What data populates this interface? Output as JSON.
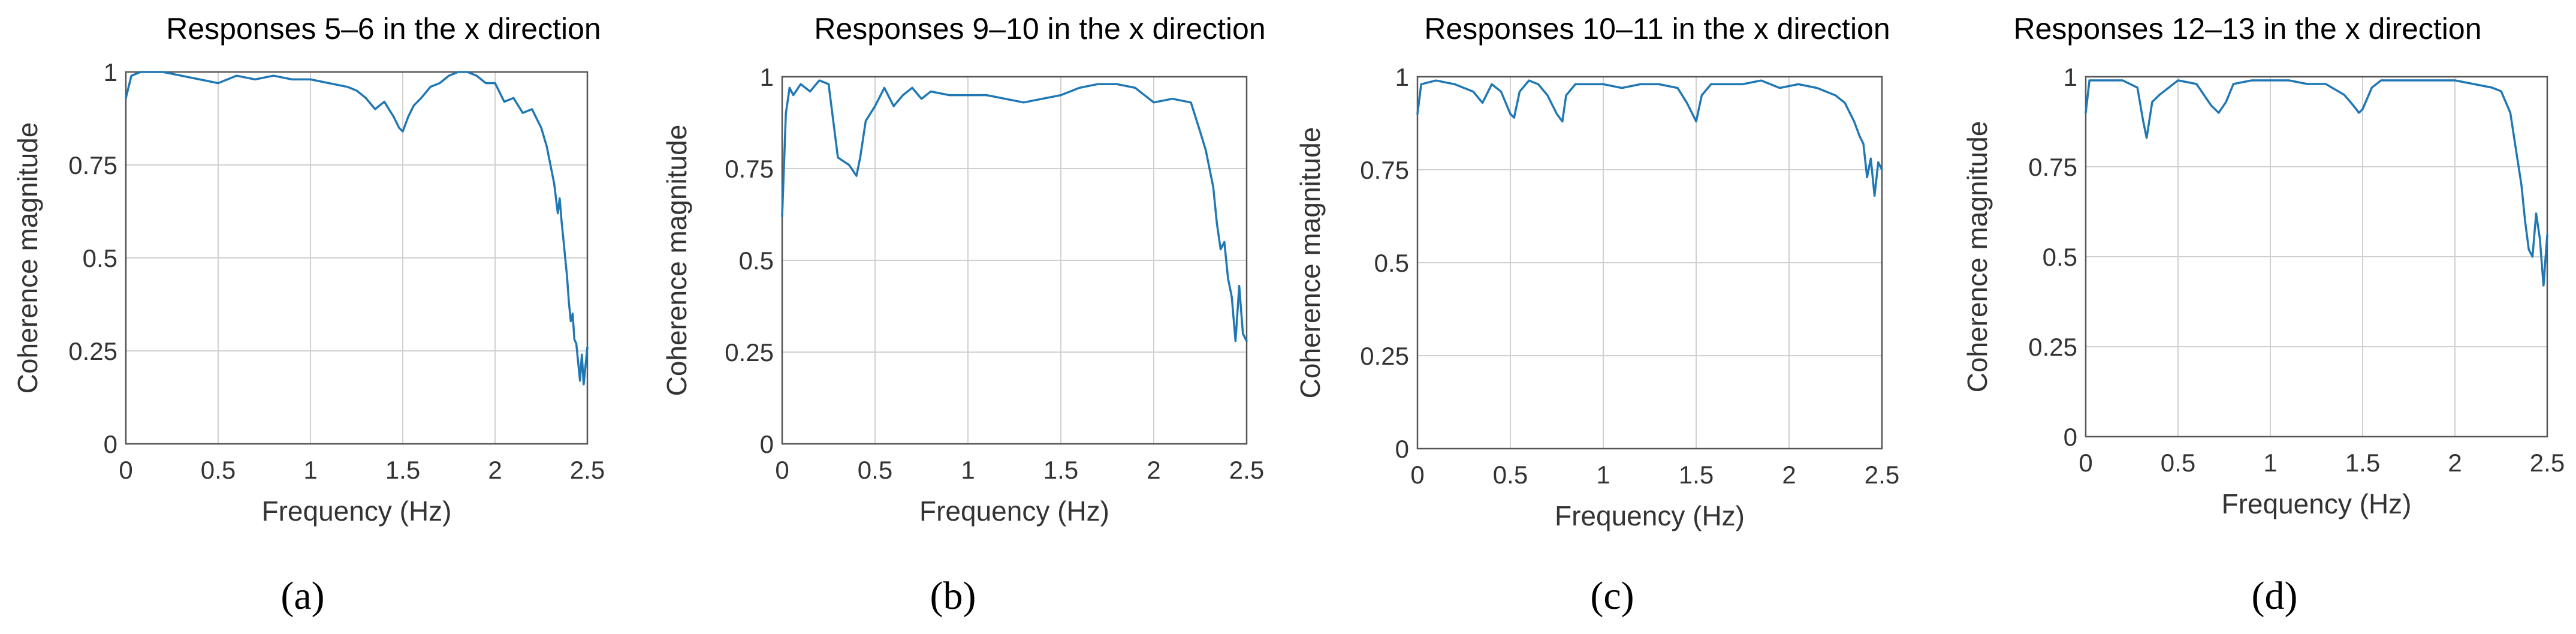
{
  "figure": {
    "panel_labels": [
      "(a)",
      "(b)",
      "(c)",
      "(d)"
    ]
  },
  "style": {
    "line_color": "#1f77b4",
    "grid_color": "#d0d0d0",
    "axis_color": "#555555"
  },
  "chart_data": [
    {
      "type": "line",
      "title": "Responses 5–6 in the x direction",
      "xlabel": "Frequency (Hz)",
      "ylabel": "Coherence magnitude",
      "xlim": [
        0,
        2.5
      ],
      "ylim": [
        0,
        1
      ],
      "xticks": [
        0,
        0.5,
        1,
        1.5,
        2,
        2.5
      ],
      "xtick_labels": [
        "0",
        "0.5",
        "1",
        "1.5",
        "2",
        "2.5"
      ],
      "yticks": [
        0,
        0.25,
        0.5,
        0.75,
        1
      ],
      "ytick_labels": [
        "0",
        "0.25",
        "0.5",
        "0.75",
        "1"
      ],
      "grid": true,
      "series": [
        {
          "name": "coherence",
          "x": [
            0,
            0.03,
            0.08,
            0.2,
            0.3,
            0.4,
            0.5,
            0.6,
            0.7,
            0.8,
            0.9,
            1.0,
            1.1,
            1.2,
            1.25,
            1.3,
            1.35,
            1.4,
            1.45,
            1.48,
            1.5,
            1.53,
            1.56,
            1.6,
            1.65,
            1.7,
            1.75,
            1.8,
            1.85,
            1.9,
            1.95,
            2.0,
            2.05,
            2.1,
            2.15,
            2.2,
            2.25,
            2.28,
            2.3,
            2.32,
            2.34,
            2.35,
            2.36,
            2.37,
            2.38,
            2.39,
            2.4,
            2.41,
            2.42,
            2.43,
            2.44,
            2.45,
            2.46,
            2.47,
            2.48,
            2.5
          ],
          "y": [
            0.93,
            0.99,
            1.0,
            1.0,
            0.99,
            0.98,
            0.97,
            0.99,
            0.98,
            0.99,
            0.98,
            0.98,
            0.97,
            0.96,
            0.95,
            0.93,
            0.9,
            0.92,
            0.88,
            0.85,
            0.84,
            0.88,
            0.91,
            0.93,
            0.96,
            0.97,
            0.99,
            1.0,
            1.0,
            0.99,
            0.97,
            0.97,
            0.92,
            0.93,
            0.89,
            0.9,
            0.85,
            0.8,
            0.75,
            0.7,
            0.62,
            0.66,
            0.6,
            0.55,
            0.5,
            0.45,
            0.38,
            0.33,
            0.35,
            0.28,
            0.27,
            0.22,
            0.17,
            0.24,
            0.16,
            0.26
          ]
        }
      ]
    },
    {
      "type": "line",
      "title": "Responses 9–10 in the x direction",
      "xlabel": "Frequency (Hz)",
      "ylabel": "Coherence magnitude",
      "xlim": [
        0,
        2.5
      ],
      "ylim": [
        0,
        1
      ],
      "xticks": [
        0,
        0.5,
        1,
        1.5,
        2,
        2.5
      ],
      "xtick_labels": [
        "0",
        "0.5",
        "1",
        "1.5",
        "2",
        "2.5"
      ],
      "yticks": [
        0,
        0.25,
        0.5,
        0.75,
        1
      ],
      "ytick_labels": [
        "0",
        "0.25",
        "0.5",
        "0.75",
        "1"
      ],
      "grid": true,
      "series": [
        {
          "name": "coherence",
          "x": [
            0,
            0.02,
            0.04,
            0.06,
            0.1,
            0.15,
            0.2,
            0.25,
            0.3,
            0.33,
            0.36,
            0.4,
            0.42,
            0.45,
            0.5,
            0.55,
            0.6,
            0.65,
            0.7,
            0.75,
            0.8,
            0.9,
            1.0,
            1.1,
            1.2,
            1.3,
            1.4,
            1.5,
            1.6,
            1.7,
            1.8,
            1.9,
            2.0,
            2.1,
            2.2,
            2.25,
            2.28,
            2.3,
            2.32,
            2.34,
            2.36,
            2.38,
            2.4,
            2.42,
            2.44,
            2.46,
            2.48,
            2.5
          ],
          "y": [
            0.62,
            0.9,
            0.97,
            0.95,
            0.98,
            0.96,
            0.99,
            0.98,
            0.78,
            0.77,
            0.76,
            0.73,
            0.78,
            0.88,
            0.92,
            0.97,
            0.92,
            0.95,
            0.97,
            0.94,
            0.96,
            0.95,
            0.95,
            0.95,
            0.94,
            0.93,
            0.94,
            0.95,
            0.97,
            0.98,
            0.98,
            0.97,
            0.93,
            0.94,
            0.93,
            0.85,
            0.8,
            0.75,
            0.7,
            0.6,
            0.53,
            0.55,
            0.45,
            0.4,
            0.28,
            0.43,
            0.3,
            0.28
          ]
        }
      ]
    },
    {
      "type": "line",
      "title": "Responses 10–11 in the x direction",
      "xlabel": "Frequency (Hz)",
      "ylabel": "Coherence magnitude",
      "xlim": [
        0,
        2.5
      ],
      "ylim": [
        0,
        1
      ],
      "xticks": [
        0,
        0.5,
        1,
        1.5,
        2,
        2.5
      ],
      "xtick_labels": [
        "0",
        "0.5",
        "1",
        "1.5",
        "2",
        "2.5"
      ],
      "yticks": [
        0,
        0.25,
        0.5,
        0.75,
        1
      ],
      "ytick_labels": [
        "0",
        "0.25",
        "0.5",
        "0.75",
        "1"
      ],
      "grid": true,
      "series": [
        {
          "name": "coherence",
          "x": [
            0,
            0.02,
            0.1,
            0.2,
            0.3,
            0.35,
            0.4,
            0.45,
            0.5,
            0.52,
            0.55,
            0.6,
            0.65,
            0.7,
            0.75,
            0.78,
            0.8,
            0.85,
            0.9,
            1.0,
            1.1,
            1.2,
            1.3,
            1.4,
            1.45,
            1.5,
            1.53,
            1.58,
            1.65,
            1.75,
            1.85,
            1.95,
            2.05,
            2.15,
            2.2,
            2.25,
            2.3,
            2.35,
            2.38,
            2.4,
            2.42,
            2.44,
            2.46,
            2.48,
            2.5
          ],
          "y": [
            0.9,
            0.98,
            0.99,
            0.98,
            0.96,
            0.93,
            0.98,
            0.96,
            0.9,
            0.89,
            0.96,
            0.99,
            0.98,
            0.95,
            0.9,
            0.88,
            0.95,
            0.98,
            0.98,
            0.98,
            0.97,
            0.98,
            0.98,
            0.97,
            0.93,
            0.88,
            0.95,
            0.98,
            0.98,
            0.98,
            0.99,
            0.97,
            0.98,
            0.97,
            0.96,
            0.95,
            0.93,
            0.88,
            0.84,
            0.82,
            0.73,
            0.78,
            0.68,
            0.77,
            0.75
          ]
        }
      ]
    },
    {
      "type": "line",
      "title": "Responses 12–13 in the x direction",
      "xlabel": "Frequency (Hz)",
      "ylabel": "Coherence magnitude",
      "xlim": [
        0,
        2.5
      ],
      "ylim": [
        0,
        1
      ],
      "xticks": [
        0,
        0.5,
        1,
        1.5,
        2,
        2.5
      ],
      "xtick_labels": [
        "0",
        "0.5",
        "1",
        "1.5",
        "2",
        "2.5"
      ],
      "yticks": [
        0,
        0.25,
        0.5,
        0.75,
        1
      ],
      "ytick_labels": [
        "0",
        "0.25",
        "0.5",
        "0.75",
        "1"
      ],
      "grid": true,
      "series": [
        {
          "name": "coherence",
          "x": [
            0,
            0.02,
            0.1,
            0.2,
            0.28,
            0.31,
            0.33,
            0.36,
            0.4,
            0.5,
            0.6,
            0.68,
            0.72,
            0.76,
            0.8,
            0.9,
            1.0,
            1.1,
            1.2,
            1.3,
            1.4,
            1.45,
            1.48,
            1.5,
            1.55,
            1.6,
            1.7,
            1.8,
            1.9,
            2.0,
            2.1,
            2.2,
            2.25,
            2.3,
            2.33,
            2.36,
            2.38,
            2.4,
            2.42,
            2.44,
            2.46,
            2.48,
            2.5
          ],
          "y": [
            0.9,
            0.99,
            0.99,
            0.99,
            0.97,
            0.88,
            0.83,
            0.93,
            0.95,
            0.99,
            0.98,
            0.92,
            0.9,
            0.93,
            0.98,
            0.99,
            0.99,
            0.99,
            0.98,
            0.98,
            0.95,
            0.92,
            0.9,
            0.91,
            0.97,
            0.99,
            0.99,
            0.99,
            0.99,
            0.99,
            0.98,
            0.97,
            0.96,
            0.9,
            0.8,
            0.7,
            0.6,
            0.52,
            0.5,
            0.62,
            0.55,
            0.42,
            0.56
          ]
        }
      ]
    }
  ]
}
